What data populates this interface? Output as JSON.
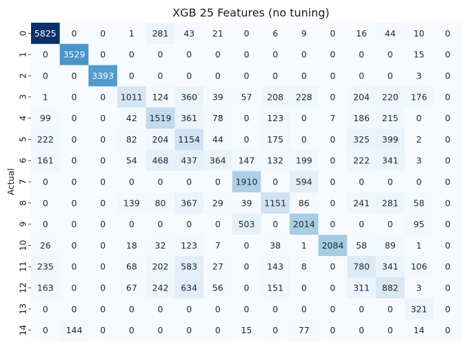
{
  "chart_data": {
    "type": "heatmap",
    "title": "XGB 25 Features (no tuning)",
    "xlabel": "",
    "ylabel": "Actual",
    "x_categories": [
      "0",
      "1",
      "2",
      "3",
      "4",
      "5",
      "6",
      "7",
      "8",
      "9",
      "10",
      "11",
      "12",
      "13",
      "14"
    ],
    "y_categories": [
      "0",
      "1",
      "2",
      "3",
      "4",
      "5",
      "6",
      "7",
      "8",
      "9",
      "10",
      "11",
      "12",
      "13",
      "14"
    ],
    "colormap": "Blues",
    "colorbar": false,
    "annotated": true,
    "vmin": 0,
    "vmax": 5825,
    "colors": {
      "low": "#f7fbff",
      "high": "#08306b",
      "text_dark": "#262626",
      "text_light": "#ffffff"
    },
    "values": [
      [
        5825,
        0,
        0,
        1,
        281,
        43,
        21,
        0,
        6,
        9,
        0,
        16,
        44,
        10,
        0
      ],
      [
        0,
        3529,
        0,
        0,
        0,
        0,
        0,
        0,
        0,
        0,
        0,
        0,
        0,
        15,
        0
      ],
      [
        0,
        0,
        3393,
        0,
        0,
        0,
        0,
        0,
        0,
        0,
        0,
        0,
        0,
        3,
        0
      ],
      [
        1,
        0,
        0,
        1011,
        124,
        360,
        39,
        57,
        208,
        228,
        0,
        204,
        220,
        176,
        0
      ],
      [
        99,
        0,
        0,
        42,
        1519,
        361,
        78,
        0,
        123,
        0,
        7,
        186,
        215,
        0,
        0
      ],
      [
        222,
        0,
        0,
        82,
        204,
        1154,
        44,
        0,
        175,
        0,
        0,
        325,
        399,
        2,
        0
      ],
      [
        161,
        0,
        0,
        54,
        468,
        437,
        364,
        147,
        132,
        199,
        0,
        222,
        341,
        3,
        0
      ],
      [
        0,
        0,
        0,
        0,
        0,
        0,
        0,
        1910,
        0,
        594,
        0,
        0,
        0,
        0,
        0
      ],
      [
        0,
        0,
        0,
        139,
        80,
        367,
        29,
        39,
        1151,
        86,
        0,
        241,
        281,
        58,
        0
      ],
      [
        0,
        0,
        0,
        0,
        0,
        0,
        0,
        503,
        0,
        2014,
        0,
        0,
        0,
        95,
        0
      ],
      [
        26,
        0,
        0,
        18,
        32,
        123,
        7,
        0,
        38,
        1,
        2084,
        58,
        89,
        1,
        0
      ],
      [
        235,
        0,
        0,
        68,
        202,
        583,
        27,
        0,
        143,
        8,
        0,
        780,
        341,
        106,
        0
      ],
      [
        163,
        0,
        0,
        67,
        242,
        634,
        56,
        0,
        151,
        0,
        0,
        311,
        882,
        3,
        0
      ],
      [
        0,
        0,
        0,
        0,
        0,
        0,
        0,
        0,
        0,
        0,
        0,
        0,
        0,
        321,
        0
      ],
      [
        0,
        144,
        0,
        0,
        0,
        0,
        0,
        15,
        0,
        77,
        0,
        0,
        0,
        14,
        0
      ]
    ]
  }
}
